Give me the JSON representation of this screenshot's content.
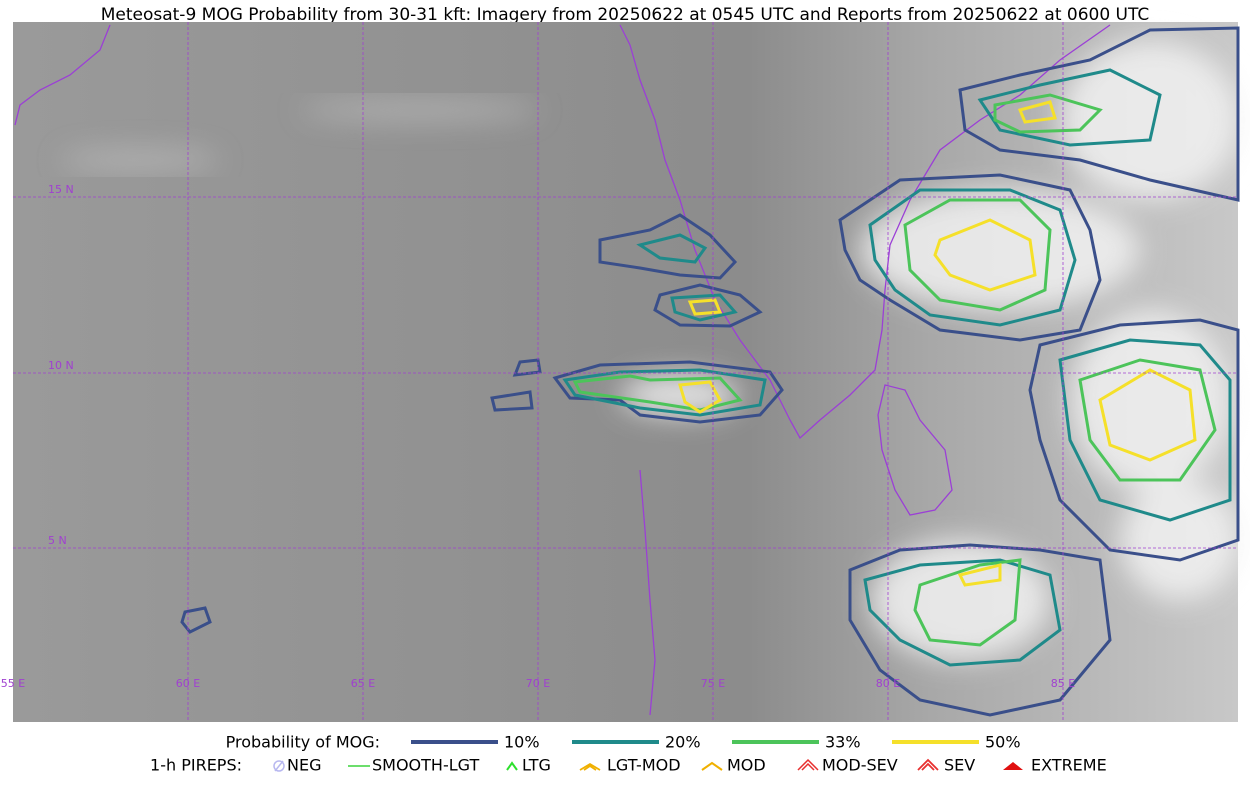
{
  "title": "Meteosat-9 MOG Probability from 30-31 kft: Imagery from 20250622 at 0545 UTC and Reports from 20250622 at 0600 UTC",
  "map": {
    "lat_labels": [
      "15 N",
      "10 N",
      "5 N"
    ],
    "lon_labels": [
      "55 E",
      "60 E",
      "65 E",
      "70 E",
      "75 E",
      "80 E",
      "85 E"
    ]
  },
  "legend": {
    "probability": {
      "label": "Probability of MOG:",
      "items": [
        {
          "label": "10%",
          "color": "#3a4f8a"
        },
        {
          "label": "20%",
          "color": "#1f8a8a"
        },
        {
          "label": "33%",
          "color": "#4cc45a"
        },
        {
          "label": "50%",
          "color": "#f5e02a"
        }
      ]
    },
    "pireps": {
      "label": "1-h PIREPS:",
      "items": [
        "NEG",
        "SMOOTH-LGT",
        "LTG",
        "LGT-MOD",
        "MOD",
        "MOD-SEV",
        "SEV",
        "EXTREME"
      ]
    }
  }
}
